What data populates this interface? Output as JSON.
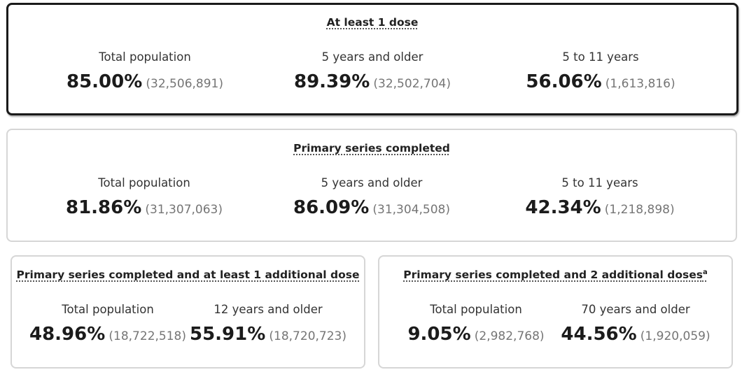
{
  "cards": [
    {
      "title": "At least 1 dose",
      "stats": [
        {
          "label": "Total population",
          "percent": "85.00%",
          "count": "(32,506,891)"
        },
        {
          "label": "5 years and older",
          "percent": "89.39%",
          "count": "(32,502,704)"
        },
        {
          "label": "5 to 11 years",
          "percent": "56.06%",
          "count": "(1,613,816)"
        }
      ]
    },
    {
      "title": "Primary series completed",
      "stats": [
        {
          "label": "Total population",
          "percent": "81.86%",
          "count": "(31,307,063)"
        },
        {
          "label": "5 years and older",
          "percent": "86.09%",
          "count": "(31,304,508)"
        },
        {
          "label": "5 to 11 years",
          "percent": "42.34%",
          "count": "(1,218,898)"
        }
      ]
    },
    {
      "title": "Primary series completed and at least 1 additional dose",
      "stats": [
        {
          "label": "Total population",
          "percent": "48.96%",
          "count": "(18,722,518)"
        },
        {
          "label": "12 years and older",
          "percent": "55.91%",
          "count": "(18,720,723)"
        }
      ]
    },
    {
      "title": "Primary series completed and 2 additional doses",
      "footnote": "a",
      "stats": [
        {
          "label": "Total population",
          "percent": "9.05%",
          "count": "(2,982,768)"
        },
        {
          "label": "70 years and older",
          "percent": "44.56%",
          "count": "(1,920,059)"
        }
      ]
    }
  ],
  "colors": {
    "active_border": "#1a1a1a",
    "inactive_border": "#d6d6d6",
    "count_text": "#757575"
  }
}
